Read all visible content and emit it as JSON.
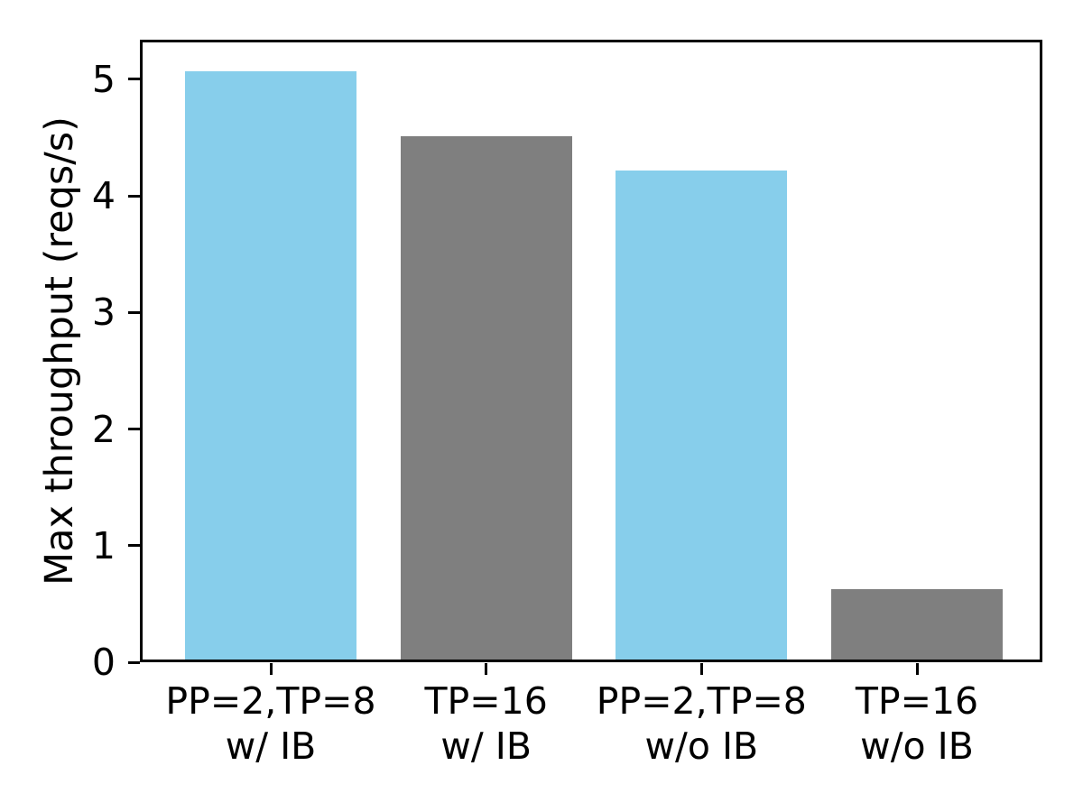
{
  "chart_data": {
    "type": "bar",
    "title": "",
    "xlabel": "",
    "ylabel": "Max throughput (reqs/s)",
    "categories": [
      "PP=2,TP=8\nw/ IB",
      "TP=16\nw/ IB",
      "PP=2,TP=8\nw/o IB",
      "TP=16\nw/o IB"
    ],
    "values": [
      5.07,
      4.51,
      4.22,
      0.63
    ],
    "bar_colors": [
      "#87CEEB",
      "#7F7F7F",
      "#87CEEB",
      "#7F7F7F"
    ],
    "yticks": [
      0,
      1,
      2,
      3,
      4,
      5
    ],
    "ylim": [
      0,
      5.34
    ],
    "grid": false,
    "legend": "none",
    "frame": "full-box",
    "colors": {
      "skyblue": "#87CEEB",
      "gray": "#7F7F7F",
      "axis": "#000000",
      "background": "#ffffff"
    }
  }
}
